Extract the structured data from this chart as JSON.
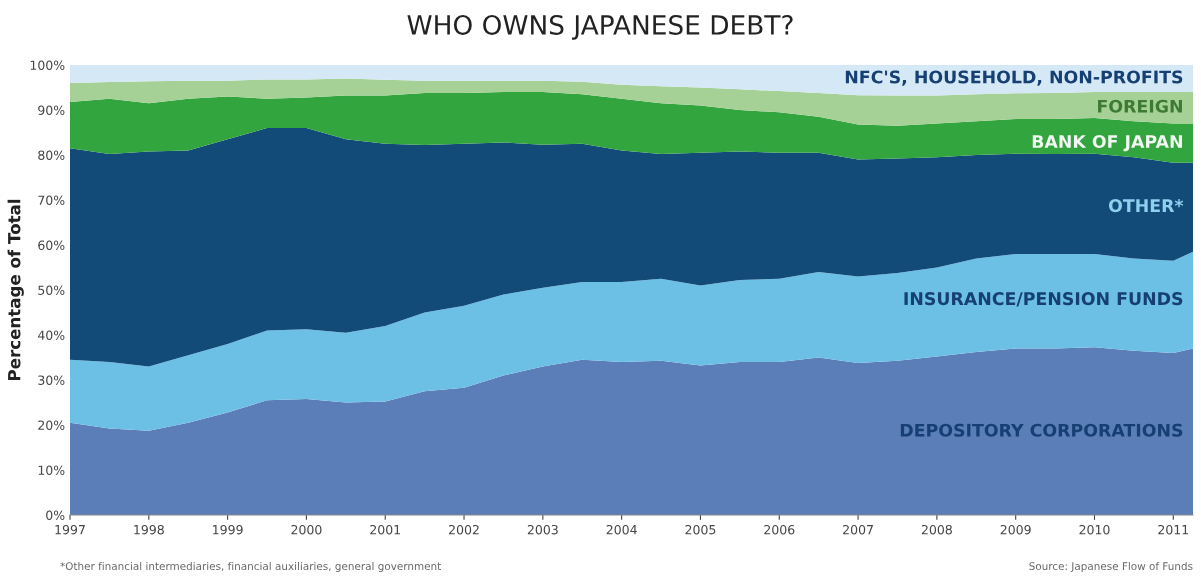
{
  "chart_data": {
    "type": "area",
    "stacked": true,
    "title": "WHO OWNS JAPANESE DEBT?",
    "ylabel": "Percentage of Total",
    "x": [
      1997,
      1997.5,
      1998,
      1998.5,
      1999,
      1999.5,
      2000,
      2000.5,
      2001,
      2001.5,
      2002,
      2002.5,
      2003,
      2003.5,
      2004,
      2004.5,
      2005,
      2005.5,
      2006,
      2006.5,
      2007,
      2007.5,
      2008,
      2008.5,
      2009,
      2009.5,
      2010,
      2010.5,
      2011,
      2011.25
    ],
    "series": [
      {
        "name": "DEPOSITORY CORPORATIONS",
        "color": "#5b7db8",
        "values": [
          20.5,
          19.2,
          18.7,
          20.5,
          22.8,
          25.5,
          25.8,
          25,
          25.2,
          27.5,
          28.3,
          31,
          33,
          34.5,
          34,
          34.3,
          33.2,
          34,
          34,
          35,
          33.8,
          34.3,
          35.2,
          36.2,
          37,
          37,
          37.3,
          36.5,
          36,
          37
        ]
      },
      {
        "name": "INSURANCE/PENSION FUNDS",
        "color": "#6cc0e6",
        "values": [
          14,
          14.8,
          14.3,
          15,
          15.2,
          15.5,
          15.5,
          15.5,
          16.8,
          17.5,
          18.2,
          18,
          17.5,
          17.3,
          17.8,
          18.2,
          17.8,
          18.2,
          18.5,
          19,
          19.2,
          19.5,
          19.8,
          20.8,
          21,
          21,
          20.7,
          20.5,
          20.5,
          21.5
        ]
      },
      {
        "name": "OTHER*",
        "color": "#124a78",
        "values": [
          47,
          46.2,
          47.8,
          45.5,
          45.5,
          45,
          44.7,
          43,
          40.5,
          37.2,
          36,
          33.8,
          31.8,
          30.7,
          29.2,
          27.7,
          29.5,
          28.6,
          28,
          26.5,
          26,
          25.4,
          24.5,
          23,
          22.3,
          22.2,
          22.3,
          22.5,
          21.8,
          19.8
        ]
      },
      {
        "name": "BANK OF JAPAN",
        "color": "#33a53f",
        "values": [
          10.3,
          12.3,
          10.7,
          11.5,
          9.5,
          6.5,
          6.8,
          9.7,
          10.7,
          11.6,
          11.3,
          11.2,
          11.7,
          11,
          11.5,
          11.3,
          10.5,
          9.2,
          9,
          8,
          7.8,
          7.3,
          7.5,
          7.5,
          7.7,
          7.8,
          7.9,
          8,
          8.7,
          8.7
        ]
      },
      {
        "name": "FOREIGN",
        "color": "#a6d196",
        "values": [
          4.2,
          3.7,
          4.9,
          4,
          3.5,
          4.3,
          4,
          3.8,
          3.5,
          2.7,
          2.7,
          2.5,
          2.5,
          2.8,
          3.1,
          3.8,
          4,
          4.6,
          4.7,
          5.3,
          6.5,
          6.7,
          6.2,
          6,
          5.7,
          5.8,
          5.8,
          6.5,
          7,
          7
        ]
      },
      {
        "name": "NFC'S, HOUSEHOLD, NON-PROFITS",
        "color": "#d4e8f5",
        "values": [
          4,
          3.8,
          3.6,
          3.5,
          3.5,
          3.2,
          3.2,
          3,
          3.3,
          3.5,
          3.5,
          3.5,
          3.5,
          3.7,
          4.4,
          4.7,
          5,
          5.4,
          5.8,
          6.2,
          6.7,
          6.8,
          6.8,
          6.5,
          6.3,
          6.2,
          6,
          6,
          6,
          6
        ]
      }
    ],
    "xlim": [
      1997,
      2011.25
    ],
    "ylim": [
      0,
      100
    ],
    "xticks": [
      1997,
      1998,
      1999,
      2000,
      2001,
      2002,
      2003,
      2004,
      2005,
      2006,
      2007,
      2008,
      2009,
      2010,
      2011
    ],
    "yticks": [
      {
        "value": 0,
        "label": "0%"
      },
      {
        "value": 10,
        "label": "10%"
      },
      {
        "value": 20,
        "label": "20%"
      },
      {
        "value": 30,
        "label": "30%"
      },
      {
        "value": 40,
        "label": "40%"
      },
      {
        "value": 50,
        "label": "50%"
      },
      {
        "value": 60,
        "label": "60%"
      },
      {
        "value": 70,
        "label": "70%"
      },
      {
        "value": 80,
        "label": "80%"
      },
      {
        "value": 90,
        "label": "90%"
      },
      {
        "value": 100,
        "label": "100%"
      }
    ],
    "grid": false,
    "legend": false,
    "annotations": [
      "*Other financial intermediaries, financial auxiliaries, general government",
      "Source: Japanese Flow of Funds"
    ]
  }
}
